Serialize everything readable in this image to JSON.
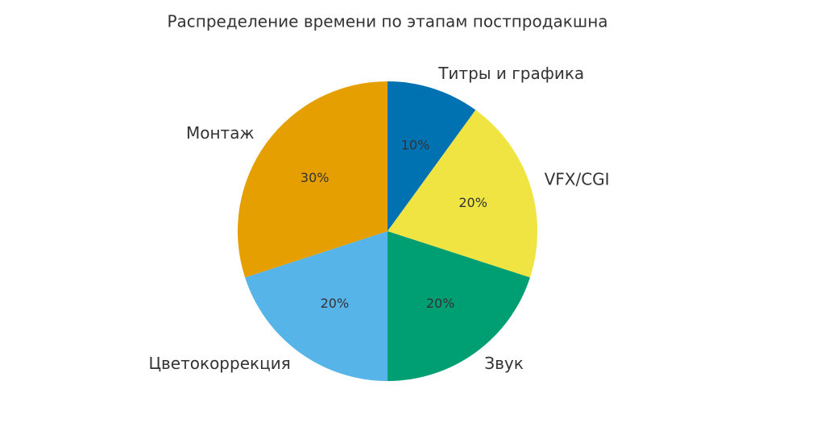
{
  "chart_data": {
    "type": "pie",
    "title": "Распределение времени по этапам постпродакшна",
    "categories": [
      "Титры и графика",
      "VFX/CGI",
      "Звук",
      "Цветокоррекция",
      "Монтаж"
    ],
    "values": [
      10,
      20,
      20,
      20,
      30
    ],
    "value_labels": [
      "10%",
      "20%",
      "20%",
      "20%",
      "30%"
    ],
    "colors": [
      "#0072b2",
      "#f0e442",
      "#009e73",
      "#56b4e9",
      "#e69f00"
    ]
  }
}
